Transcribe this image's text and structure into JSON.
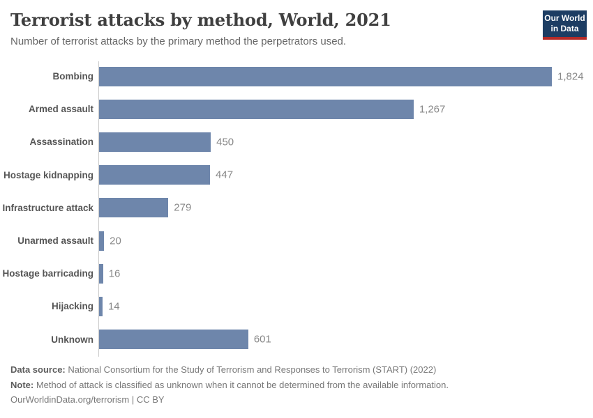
{
  "header": {
    "title": "Terrorist attacks by method, World, 2021",
    "subtitle": "Number of terrorist attacks by the primary method the perpetrators used.",
    "logo": {
      "line1": "Our World",
      "line2": "in Data"
    }
  },
  "chart_data": {
    "type": "bar",
    "orientation": "horizontal",
    "title": "Terrorist attacks by method, World, 2021",
    "categories": [
      "Bombing",
      "Armed assault",
      "Assassination",
      "Hostage kidnapping",
      "Infrastructure attack",
      "Unarmed assault",
      "Hostage barricading",
      "Hijacking",
      "Unknown"
    ],
    "values": [
      1824,
      1267,
      450,
      447,
      279,
      20,
      16,
      14,
      601
    ],
    "value_labels": [
      "1,824",
      "1,267",
      "450",
      "447",
      "279",
      "20",
      "16",
      "14",
      "601"
    ],
    "axis_max": 1824,
    "xlabel": "",
    "ylabel": "",
    "grid": false,
    "legend": "none",
    "bar_color": "#6e86ab"
  },
  "footer": {
    "data_source_label": "Data source:",
    "data_source_text": "National Consortium for the Study of Terrorism and Responses to Terrorism (START) (2022)",
    "note_label": "Note:",
    "note_text": "Method of attack is classified as unknown when it cannot be determined from the available information.",
    "link": "OurWorldinData.org/terrorism",
    "separator": " | ",
    "license": "CC BY"
  },
  "colors": {
    "bar": "#6e86ab",
    "logo_background": "#1d3d63",
    "logo_accent_red": "#b52b28",
    "axis_line": "#cccccc",
    "title_text": "#3f3f3f",
    "subtitle_text": "#666666",
    "value_label_text": "#888888",
    "category_label_text": "#555555",
    "footer_text": "#787878"
  }
}
